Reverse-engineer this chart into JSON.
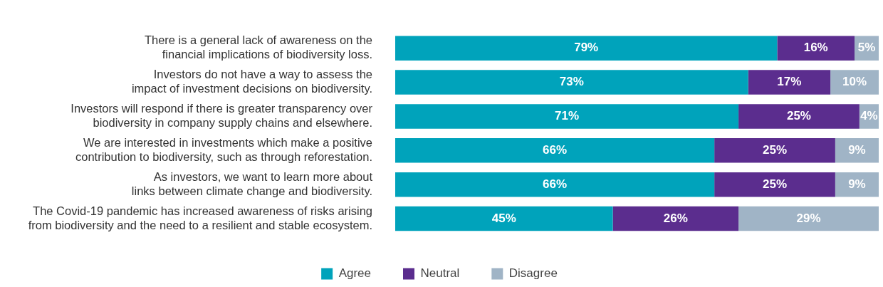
{
  "chart_data": {
    "type": "bar",
    "orientation": "horizontal",
    "stacked": true,
    "legend": "bottom",
    "tick_labels": "y",
    "xlim": [
      0,
      100
    ],
    "categories": [
      "There is a general lack of awareness on the financial implications of biodiversity loss.",
      "Investors do not have a way to assess the impact of investment decisions on biodiversity.",
      "Investors will respond if there is greater transparency over biodiversity in company supply chains and elsewhere.",
      "We are interested in investments which make a positive contribution to biodiversity, such as through reforestation.",
      "As investors, we want to learn more about links between climate change and biodiversity.",
      "The Covid-19 pandemic has increased awareness of risks arising from biodiversity and the need to a resilient and stable ecosystem."
    ],
    "series": [
      {
        "name": "Agree",
        "color": "#00a3bb",
        "values": [
          79,
          73,
          71,
          66,
          66,
          45
        ],
        "value_labels": [
          "79%",
          "73%",
          "71%",
          "66%",
          "66%",
          "45%"
        ]
      },
      {
        "name": "Neutral",
        "color": "#5b2d8e",
        "values": [
          16,
          17,
          25,
          25,
          25,
          26
        ],
        "value_labels": [
          "16%",
          "17%",
          "25%",
          "25%",
          "25%",
          "26%"
        ]
      },
      {
        "name": "Disagree",
        "color": "#a0b4c6",
        "values": [
          5,
          10,
          4,
          9,
          9,
          29
        ],
        "value_labels": [
          "5%",
          "10%",
          "4%",
          "9%",
          "9%",
          "29%"
        ]
      }
    ]
  }
}
